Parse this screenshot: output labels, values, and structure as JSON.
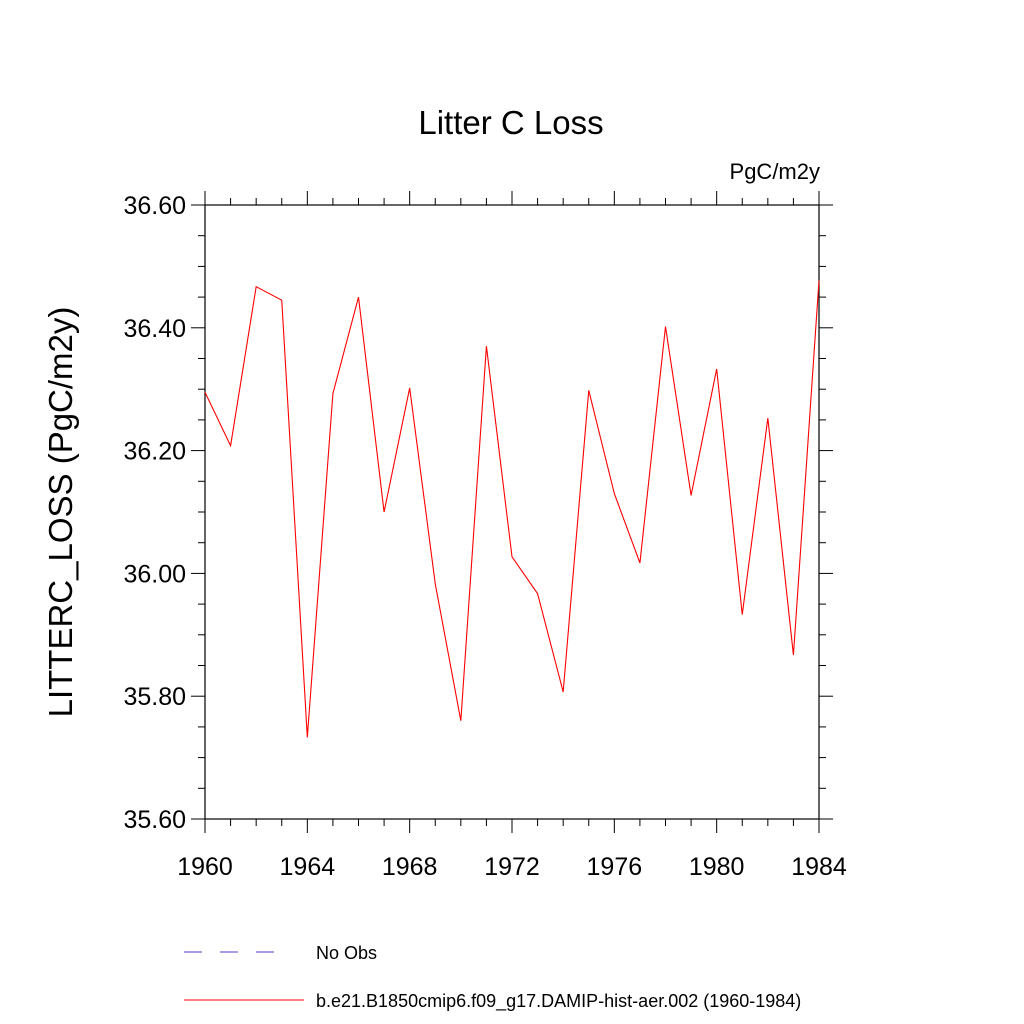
{
  "chart_data": {
    "type": "line",
    "title": "Litter C Loss",
    "units_label": "PgC/m2y",
    "ylabel": "LITTERC_LOSS  (PgC/m2y)",
    "xlabel": "",
    "xlim": [
      1960,
      1984
    ],
    "ylim": [
      35.6,
      36.6
    ],
    "x_ticks": [
      1960,
      1964,
      1968,
      1972,
      1976,
      1980,
      1984
    ],
    "x_tick_labels": [
      "1960",
      "1964",
      "1968",
      "1972",
      "1976",
      "1980",
      "1984"
    ],
    "y_ticks": [
      35.6,
      35.8,
      36.0,
      36.2,
      36.4,
      36.6
    ],
    "y_tick_labels": [
      "35.60",
      "35.80",
      "36.00",
      "36.20",
      "36.40",
      "36.60"
    ],
    "grid": false,
    "legend_position": "bottom",
    "series": [
      {
        "name": "b.e21.B1850cmip6.f09_g17.DAMIP-hist-aer.002 (1960-1984)",
        "color": "#ff0000",
        "style": "solid",
        "x": [
          1960,
          1961,
          1962,
          1963,
          1964,
          1965,
          1966,
          1967,
          1968,
          1969,
          1970,
          1971,
          1972,
          1973,
          1974,
          1975,
          1976,
          1977,
          1978,
          1979,
          1980,
          1981,
          1982,
          1983,
          1984
        ],
        "values": [
          36.295,
          36.208,
          36.467,
          36.445,
          35.733,
          36.293,
          36.45,
          36.1,
          36.302,
          35.983,
          35.76,
          36.37,
          36.027,
          35.967,
          35.807,
          36.298,
          36.13,
          36.017,
          36.402,
          36.127,
          36.333,
          35.933,
          36.253,
          35.867,
          36.477
        ]
      },
      {
        "name": "No Obs",
        "color": "#4b3cc8",
        "style": "dashed",
        "x": [],
        "values": []
      }
    ]
  }
}
